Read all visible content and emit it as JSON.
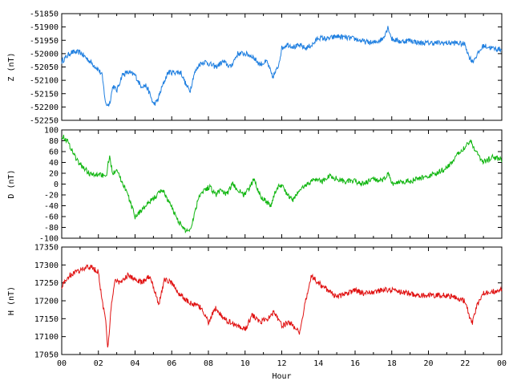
{
  "chart_data": [
    {
      "type": "line",
      "ylabel": "Z (nT)",
      "ylim": [
        -52250,
        -51850
      ],
      "yticks": [
        -52250,
        -52200,
        -52150,
        -52100,
        -52050,
        -52000,
        -51950,
        -51900,
        -51850
      ],
      "xlim": [
        0,
        24
      ],
      "grid": false,
      "color": "#1f7fe0",
      "x": [
        0,
        0.5,
        1,
        1.4,
        1.7,
        2.0,
        2.2,
        2.4,
        2.6,
        2.8,
        3.0,
        3.3,
        3.6,
        4.0,
        4.3,
        4.6,
        4.8,
        5.0,
        5.2,
        5.5,
        5.8,
        6.1,
        6.5,
        6.8,
        7.0,
        7.2,
        7.5,
        7.8,
        8.1,
        8.4,
        8.8,
        9.2,
        9.6,
        10.0,
        10.4,
        10.8,
        11.2,
        11.5,
        11.8,
        12.0,
        12.3,
        12.7,
        13.0,
        13.3,
        13.7,
        14.0,
        14.5,
        15.0,
        15.5,
        16.0,
        16.5,
        17.0,
        17.5,
        17.8,
        18.0,
        18.5,
        19.0,
        19.5,
        20.0,
        20.5,
        21.0,
        21.5,
        22.0,
        22.2,
        22.4,
        22.7,
        23.0,
        23.5,
        24.0
      ],
      "values": [
        -52030,
        -51995,
        -51995,
        -52020,
        -52040,
        -52060,
        -52080,
        -52190,
        -52190,
        -52120,
        -52140,
        -52080,
        -52070,
        -52080,
        -52120,
        -52120,
        -52150,
        -52190,
        -52180,
        -52120,
        -52070,
        -52070,
        -52070,
        -52120,
        -52140,
        -52080,
        -52040,
        -52030,
        -52040,
        -52050,
        -52030,
        -52050,
        -52000,
        -52000,
        -52010,
        -52040,
        -52030,
        -52090,
        -52050,
        -51980,
        -51965,
        -51975,
        -51970,
        -51980,
        -51965,
        -51940,
        -51945,
        -51935,
        -51940,
        -51945,
        -51955,
        -51960,
        -51945,
        -51900,
        -51945,
        -51955,
        -51950,
        -51960,
        -51960,
        -51960,
        -51960,
        -51960,
        -51965,
        -52010,
        -52030,
        -52000,
        -51970,
        -51980,
        -51985
      ]
    },
    {
      "type": "line",
      "ylabel": "D (nT)",
      "ylim": [
        -100,
        100
      ],
      "yticks": [
        -100,
        -80,
        -60,
        -40,
        -20,
        0,
        20,
        40,
        60,
        80,
        100
      ],
      "xlim": [
        0,
        24
      ],
      "grid": false,
      "color": "#11b611",
      "x": [
        0,
        0.3,
        0.6,
        0.9,
        1.2,
        1.5,
        1.8,
        2.1,
        2.4,
        2.6,
        2.8,
        3.0,
        3.2,
        3.5,
        3.8,
        4.0,
        4.3,
        4.6,
        4.9,
        5.2,
        5.5,
        5.8,
        6.1,
        6.4,
        6.7,
        7.0,
        7.2,
        7.5,
        7.8,
        8.1,
        8.4,
        8.7,
        9.0,
        9.3,
        9.6,
        9.9,
        10.2,
        10.5,
        10.8,
        11.1,
        11.4,
        11.7,
        12.0,
        12.3,
        12.6,
        13.0,
        13.4,
        13.8,
        14.2,
        14.6,
        15.0,
        15.5,
        16.0,
        16.5,
        17.0,
        17.5,
        17.8,
        18.0,
        18.5,
        19.0,
        19.5,
        20.0,
        20.5,
        21.0,
        21.5,
        22.0,
        22.3,
        22.6,
        23.0,
        23.5,
        24.0
      ],
      "values": [
        90,
        80,
        60,
        40,
        30,
        20,
        15,
        20,
        10,
        50,
        20,
        30,
        10,
        -10,
        -40,
        -60,
        -50,
        -40,
        -30,
        -20,
        -10,
        -30,
        -50,
        -70,
        -85,
        -85,
        -60,
        -20,
        -10,
        -5,
        -20,
        -10,
        -20,
        0,
        -10,
        -20,
        -10,
        10,
        -20,
        -30,
        -40,
        -10,
        0,
        -20,
        -30,
        -10,
        0,
        10,
        5,
        15,
        10,
        5,
        5,
        0,
        10,
        5,
        20,
        0,
        5,
        5,
        10,
        15,
        20,
        30,
        50,
        70,
        80,
        60,
        40,
        50,
        45
      ]
    },
    {
      "type": "line",
      "ylabel": "H (nT)",
      "xlabel": "Hour",
      "ylim": [
        17050,
        17350
      ],
      "yticks": [
        17050,
        17100,
        17150,
        17200,
        17250,
        17300,
        17350
      ],
      "xlim": [
        0,
        24
      ],
      "xticks": [
        "00",
        "02",
        "04",
        "06",
        "08",
        "10",
        "12",
        "14",
        "16",
        "18",
        "20",
        "22",
        "00"
      ],
      "grid": false,
      "color": "#e01010",
      "x": [
        0,
        0.4,
        0.8,
        1.2,
        1.6,
        2.0,
        2.2,
        2.4,
        2.5,
        2.7,
        2.9,
        3.2,
        3.6,
        4.0,
        4.4,
        4.8,
        5.0,
        5.3,
        5.6,
        6.0,
        6.4,
        6.8,
        7.2,
        7.6,
        8.0,
        8.4,
        8.8,
        9.2,
        9.6,
        10.0,
        10.4,
        10.8,
        11.2,
        11.6,
        12.0,
        12.4,
        12.8,
        13.0,
        13.3,
        13.6,
        14.0,
        14.5,
        15.0,
        15.5,
        16.0,
        16.5,
        17.0,
        17.5,
        18.0,
        18.5,
        19.0,
        19.5,
        20.0,
        20.5,
        21.0,
        21.5,
        22.0,
        22.2,
        22.4,
        22.6,
        23.0,
        23.5,
        24.0
      ],
      "values": [
        17240,
        17270,
        17280,
        17290,
        17295,
        17280,
        17200,
        17150,
        17060,
        17180,
        17260,
        17250,
        17270,
        17260,
        17250,
        17270,
        17240,
        17190,
        17260,
        17250,
        17220,
        17200,
        17190,
        17180,
        17140,
        17180,
        17150,
        17140,
        17130,
        17120,
        17160,
        17140,
        17150,
        17170,
        17130,
        17140,
        17120,
        17110,
        17200,
        17270,
        17250,
        17230,
        17210,
        17220,
        17230,
        17220,
        17225,
        17230,
        17230,
        17225,
        17220,
        17215,
        17215,
        17215,
        17215,
        17210,
        17200,
        17160,
        17140,
        17180,
        17220,
        17225,
        17230
      ]
    }
  ]
}
